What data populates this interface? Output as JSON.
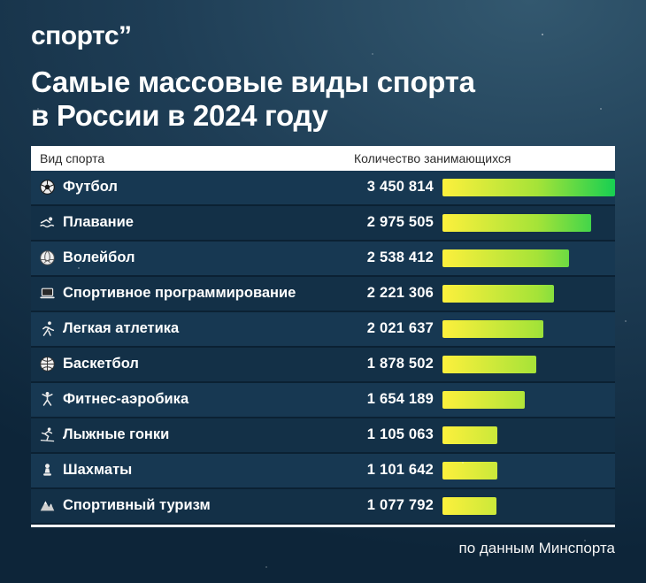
{
  "brand": {
    "logo": "спортс”"
  },
  "title": {
    "line1": "Самые массовые виды спорта",
    "line2": "в России в 2024 году"
  },
  "table": {
    "col_sport": "Вид спорта",
    "col_count": "Количество занимающихся"
  },
  "footer": {
    "source": "по данным Минспорта"
  },
  "colors": {
    "bar_yellow": "#fdf03c",
    "bar_mid": "#a5e338",
    "bar_green": "#17cf52",
    "background_top": "#33586f",
    "background_bottom": "#0d2539",
    "header_bg": "#ffffff"
  },
  "chart_data": {
    "type": "bar",
    "title": "Самые массовые виды спорта в России в 2024 году",
    "categories": [
      "Футбол",
      "Плавание",
      "Волейбол",
      "Спортивное программирование",
      "Легкая атлетика",
      "Баскетбол",
      "Фитнес-аэробика",
      "Лыжные гонки",
      "Шахматы",
      "Спортивный туризм"
    ],
    "values": [
      3450814,
      2975505,
      2538412,
      2221306,
      2021637,
      1878502,
      1654189,
      1105063,
      1101642,
      1077792
    ],
    "value_labels": [
      "3 450 814",
      "2 975 505",
      "2 538 412",
      "2 221 306",
      "2 021 637",
      "1 878 502",
      "1 654 189",
      "1 105 063",
      "1 101 642",
      "1 077 792"
    ],
    "icons": [
      "soccer-ball-icon",
      "swimmer-icon",
      "volleyball-icon",
      "laptop-icon",
      "runner-icon",
      "basketball-icon",
      "aerobics-icon",
      "skier-icon",
      "chess-pawn-icon",
      "mountain-tourism-icon"
    ],
    "xlabel": "",
    "ylabel": "",
    "xlim": [
      0,
      3450814
    ],
    "legend": "none",
    "grid": "off",
    "source": "по данным Минспорта"
  }
}
